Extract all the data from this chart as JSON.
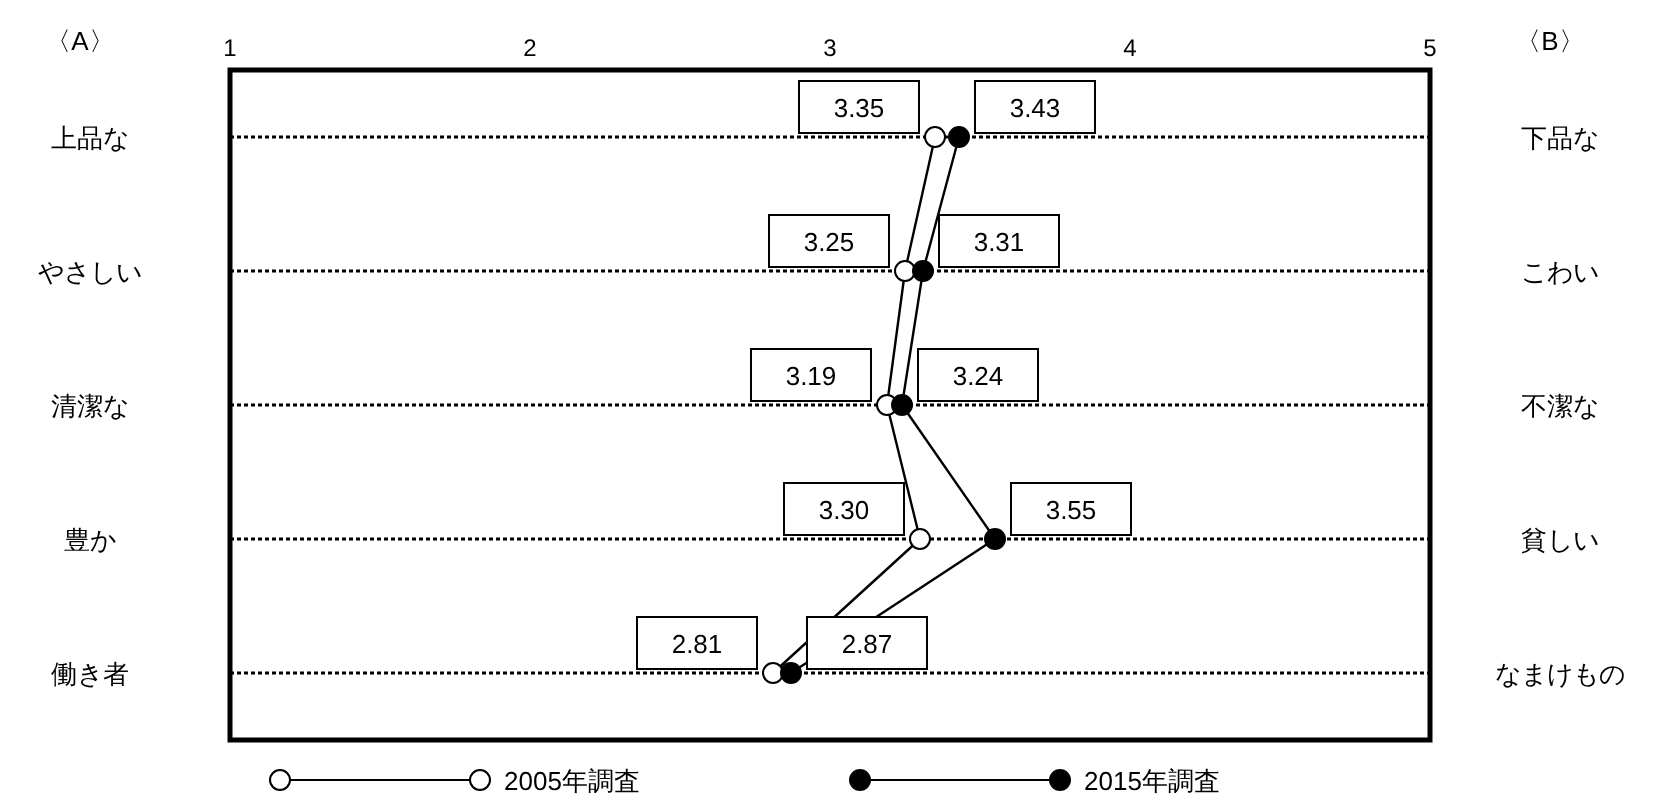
{
  "chart_data": {
    "type": "line",
    "orientation": "horizontal",
    "ylabel": "〈A〉",
    "y2label": "〈B〉",
    "categories": [
      "上品な",
      "やさしい",
      "清潔な",
      "豊か",
      "働き者"
    ],
    "y2_categories": [
      "下品な",
      "こわい",
      "不潔な",
      "貧しい",
      "なまけもの"
    ],
    "xlim": [
      1,
      5
    ],
    "xticks": [
      1,
      2,
      3,
      4,
      5
    ],
    "series": [
      {
        "name": "2005年調査",
        "color": "#ffffff",
        "values": [
          3.35,
          3.25,
          3.19,
          3.3,
          2.81
        ],
        "value_labels": [
          "3.35",
          "3.25",
          "3.19",
          "3.30",
          "2.81"
        ]
      },
      {
        "name": "2015年調査",
        "color": "#000000",
        "values": [
          3.43,
          3.31,
          3.24,
          3.55,
          2.87
        ],
        "value_labels": [
          "3.43",
          "3.31",
          "3.24",
          "3.55",
          "2.87"
        ]
      }
    ],
    "marker": "circle",
    "line_style": "solid",
    "grid": "y",
    "legend": "bottom"
  }
}
